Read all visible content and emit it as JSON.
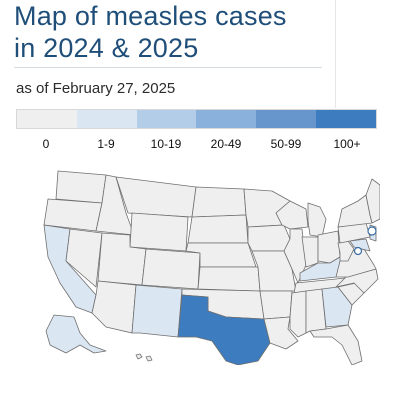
{
  "header": {
    "title_line1": "Map of measles cases",
    "title_line2": "in 2024 & 2025",
    "subtitle": "as of February 27, 2025"
  },
  "legend": {
    "bins": [
      {
        "label": "0",
        "color": "#efefef"
      },
      {
        "label": "1-9",
        "color": "#dbe6f3"
      },
      {
        "label": "10-19",
        "color": "#b3cde8"
      },
      {
        "label": "20-49",
        "color": "#8ab1db"
      },
      {
        "label": "50-99",
        "color": "#6696cc"
      },
      {
        "label": "100+",
        "color": "#3d7cbf"
      }
    ]
  },
  "map": {
    "default_fill": "#efefef",
    "states": {
      "TX": "100+",
      "NM": "1-9",
      "CA": "1-9",
      "KY": "1-9",
      "GA": "1-9",
      "AK": "1-9",
      "NJ": "1-9",
      "MD": "1-9"
    },
    "markers": [
      "NYC",
      "DC"
    ]
  }
}
